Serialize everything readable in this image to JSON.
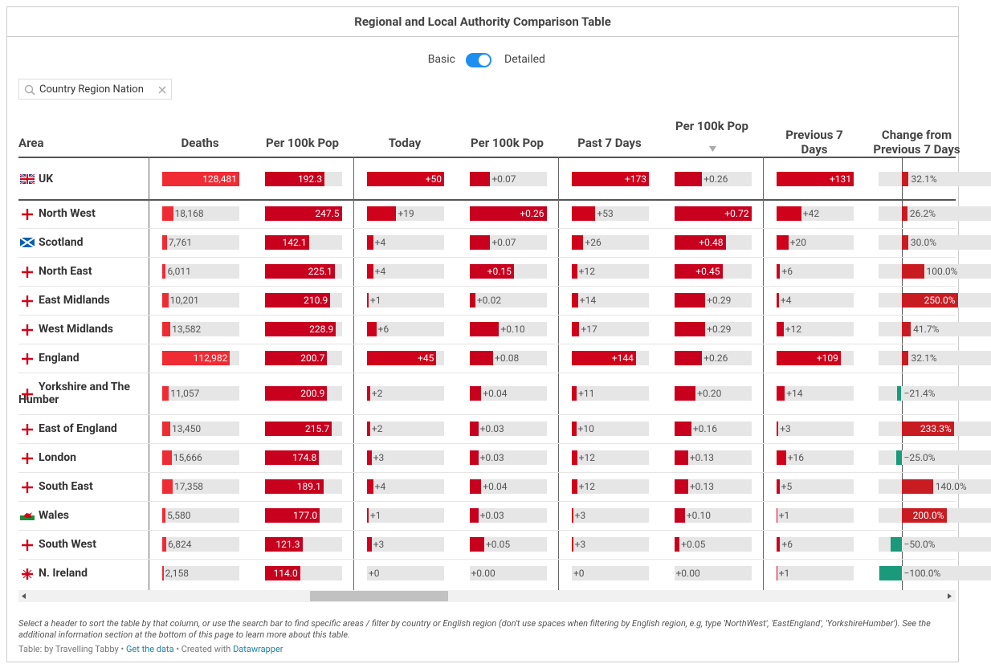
{
  "header": {
    "title": "Regional and Local Authority Comparison Table"
  },
  "toggle": {
    "left": "Basic",
    "right": "Detailed"
  },
  "search": {
    "placeholder": "Country Region Nation"
  },
  "table": {
    "columns": [
      "Area",
      "Deaths",
      "Per 100k Pop",
      "Today",
      "Per 100k Pop",
      "Past 7 Days",
      "Per 100k Pop",
      "Previous 7 Days",
      "Change from Previous 7 Days"
    ],
    "rows": [
      {
        "area": "UK",
        "cells": [
          "128,481",
          "192.3",
          "+50",
          "+0.07",
          "+173",
          "+0.26",
          "+131",
          "32.1%"
        ]
      },
      {
        "area": "North West",
        "cells": [
          "18,168",
          "247.5",
          "+19",
          "+0.26",
          "+53",
          "+0.72",
          "+42",
          "26.2%"
        ]
      },
      {
        "area": "Scotland",
        "cells": [
          "7,761",
          "142.1",
          "+4",
          "+0.07",
          "+26",
          "+0.48",
          "+20",
          "30.0%"
        ]
      },
      {
        "area": "North East",
        "cells": [
          "6,011",
          "225.1",
          "+4",
          "+0.15",
          "+12",
          "+0.45",
          "+6",
          "100.0%"
        ]
      },
      {
        "area": "East Midlands",
        "cells": [
          "10,201",
          "210.9",
          "+1",
          "+0.02",
          "+14",
          "+0.29",
          "+4",
          "250.0%"
        ]
      },
      {
        "area": "West Midlands",
        "cells": [
          "13,582",
          "228.9",
          "+6",
          "+0.10",
          "+17",
          "+0.29",
          "+12",
          "41.7%"
        ]
      },
      {
        "area": "England",
        "cells": [
          "112,982",
          "200.7",
          "+45",
          "+0.08",
          "+144",
          "+0.26",
          "+109",
          "32.1%"
        ]
      },
      {
        "area": "Yorkshire and The Humber",
        "cells": [
          "11,057",
          "200.9",
          "+2",
          "+0.04",
          "+11",
          "+0.20",
          "+14",
          "−21.4%"
        ]
      },
      {
        "area": "East of England",
        "cells": [
          "13,450",
          "215.7",
          "+2",
          "+0.03",
          "+10",
          "+0.16",
          "+3",
          "233.3%"
        ]
      },
      {
        "area": "London",
        "cells": [
          "15,666",
          "174.8",
          "+3",
          "+0.03",
          "+12",
          "+0.13",
          "+16",
          "−25.0%"
        ]
      },
      {
        "area": "South East",
        "cells": [
          "17,358",
          "189.1",
          "+4",
          "+0.04",
          "+12",
          "+0.13",
          "+5",
          "140.0%"
        ]
      },
      {
        "area": "Wales",
        "cells": [
          "5,580",
          "177.0",
          "+1",
          "+0.03",
          "+3",
          "+0.10",
          "+1",
          "200.0%"
        ]
      },
      {
        "area": "South West",
        "cells": [
          "6,824",
          "121.3",
          "+3",
          "+0.05",
          "+3",
          "+0.05",
          "+6",
          "−50.0%"
        ]
      },
      {
        "area": "N. Ireland",
        "cells": [
          "2,158",
          "114.0",
          "+0",
          "+0.00",
          "+0",
          "+0.00",
          "+1",
          "−100.0%"
        ]
      }
    ]
  },
  "footer": {
    "note": "Select a header to sort the table by that column, or use the search bar to find specific areas / filter by country or English region (don't use spaces when filtering by English region, e.g, type 'NorthWest', 'EastEngland', 'YorkshireHumber'). See the additional information section at the bottom of this page to learn more about this table.",
    "source": "Table: by Travelling Tabby",
    "sep1": "•",
    "link1": "Get the data",
    "sep2": "•",
    "created": "Created with",
    "link2": "Datawrapper"
  }
}
